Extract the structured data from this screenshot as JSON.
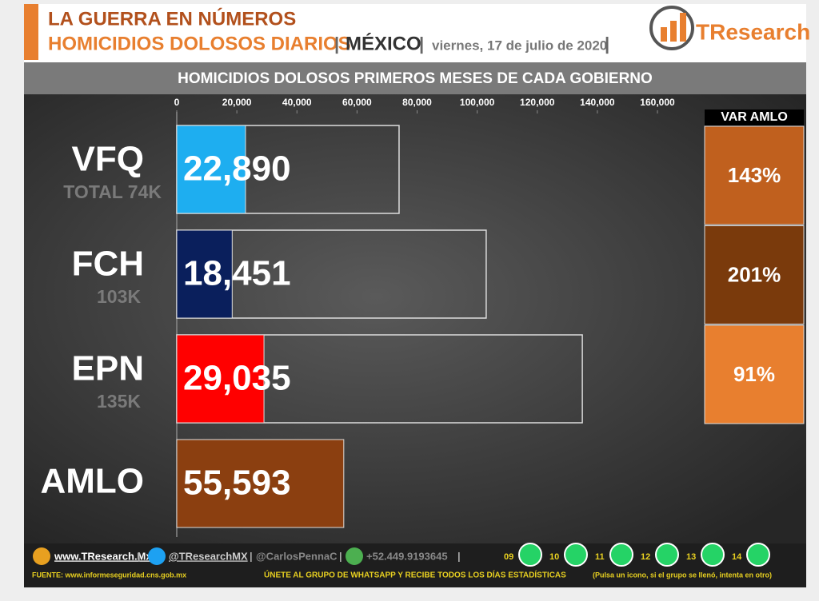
{
  "header": {
    "line1": "LA GUERRA EN NÚMEROS",
    "line2": "HOMICIDIOS DOLOSOS DIARIOS",
    "separator": "|",
    "country": "MÉXICO",
    "date": "viernes, 17 de julio de 2020",
    "logo": "TResearch"
  },
  "chart_data": {
    "type": "bar",
    "orientation": "horizontal",
    "title": "HOMICIDIOS DOLOSOS PRIMEROS MESES DE CADA GOBIERNO",
    "categories": [
      "VFQ",
      "FCH",
      "EPN",
      "AMLO"
    ],
    "values": [
      22890,
      18451,
      29035,
      55593
    ],
    "value_labels": [
      "22,890",
      "18,451",
      "29,035",
      "55,593"
    ],
    "colors": [
      "#1eaef0",
      "#0a1f5c",
      "#ff0000",
      "#8b3f10"
    ],
    "totals": {
      "values": [
        74000,
        103000,
        135000,
        null
      ],
      "value_labels": [
        "TOTAL 74K",
        "103K",
        "135K",
        null
      ]
    },
    "var": {
      "title": "VAR AMLO",
      "values": [
        143,
        201,
        91
      ],
      "value_labels": [
        "143%",
        "201%",
        "91%"
      ],
      "colors": [
        "#c0601e",
        "#7a3a0c",
        "#e87f2f"
      ]
    },
    "xlim": [
      0,
      160000
    ],
    "xticks": [
      0,
      {
        "value": 20000,
        "label": "20,000"
      },
      {
        "value": 40000,
        "label": "40,000"
      },
      {
        "value": 60000,
        "label": "60,000"
      },
      {
        "value": 80000,
        "label": "80,000"
      },
      {
        "value": 100000,
        "label": "100,000"
      },
      {
        "value": 120000,
        "label": "120,000"
      },
      {
        "value": 140000,
        "label": "140,000"
      },
      {
        "value": 160000,
        "label": "160,000"
      }
    ]
  },
  "footer": {
    "website": "www.TResearch.Mx",
    "twitter": "@TResearchMX",
    "author": "@CarlosPennaC",
    "phone": "+52.449.9193645",
    "groups": [
      "09",
      "10",
      "11",
      "12",
      "13",
      "14"
    ],
    "source": "FUENTE: www.informeseguridad.cns.gob.mx",
    "cta": "ÚNETE AL GRUPO DE WHATSAPP Y RECIBE TODOS LOS DÍAS ESTADÍSTICAS",
    "note": "(Pulsa un icono, si el grupo se llenó, intenta en otro)"
  }
}
